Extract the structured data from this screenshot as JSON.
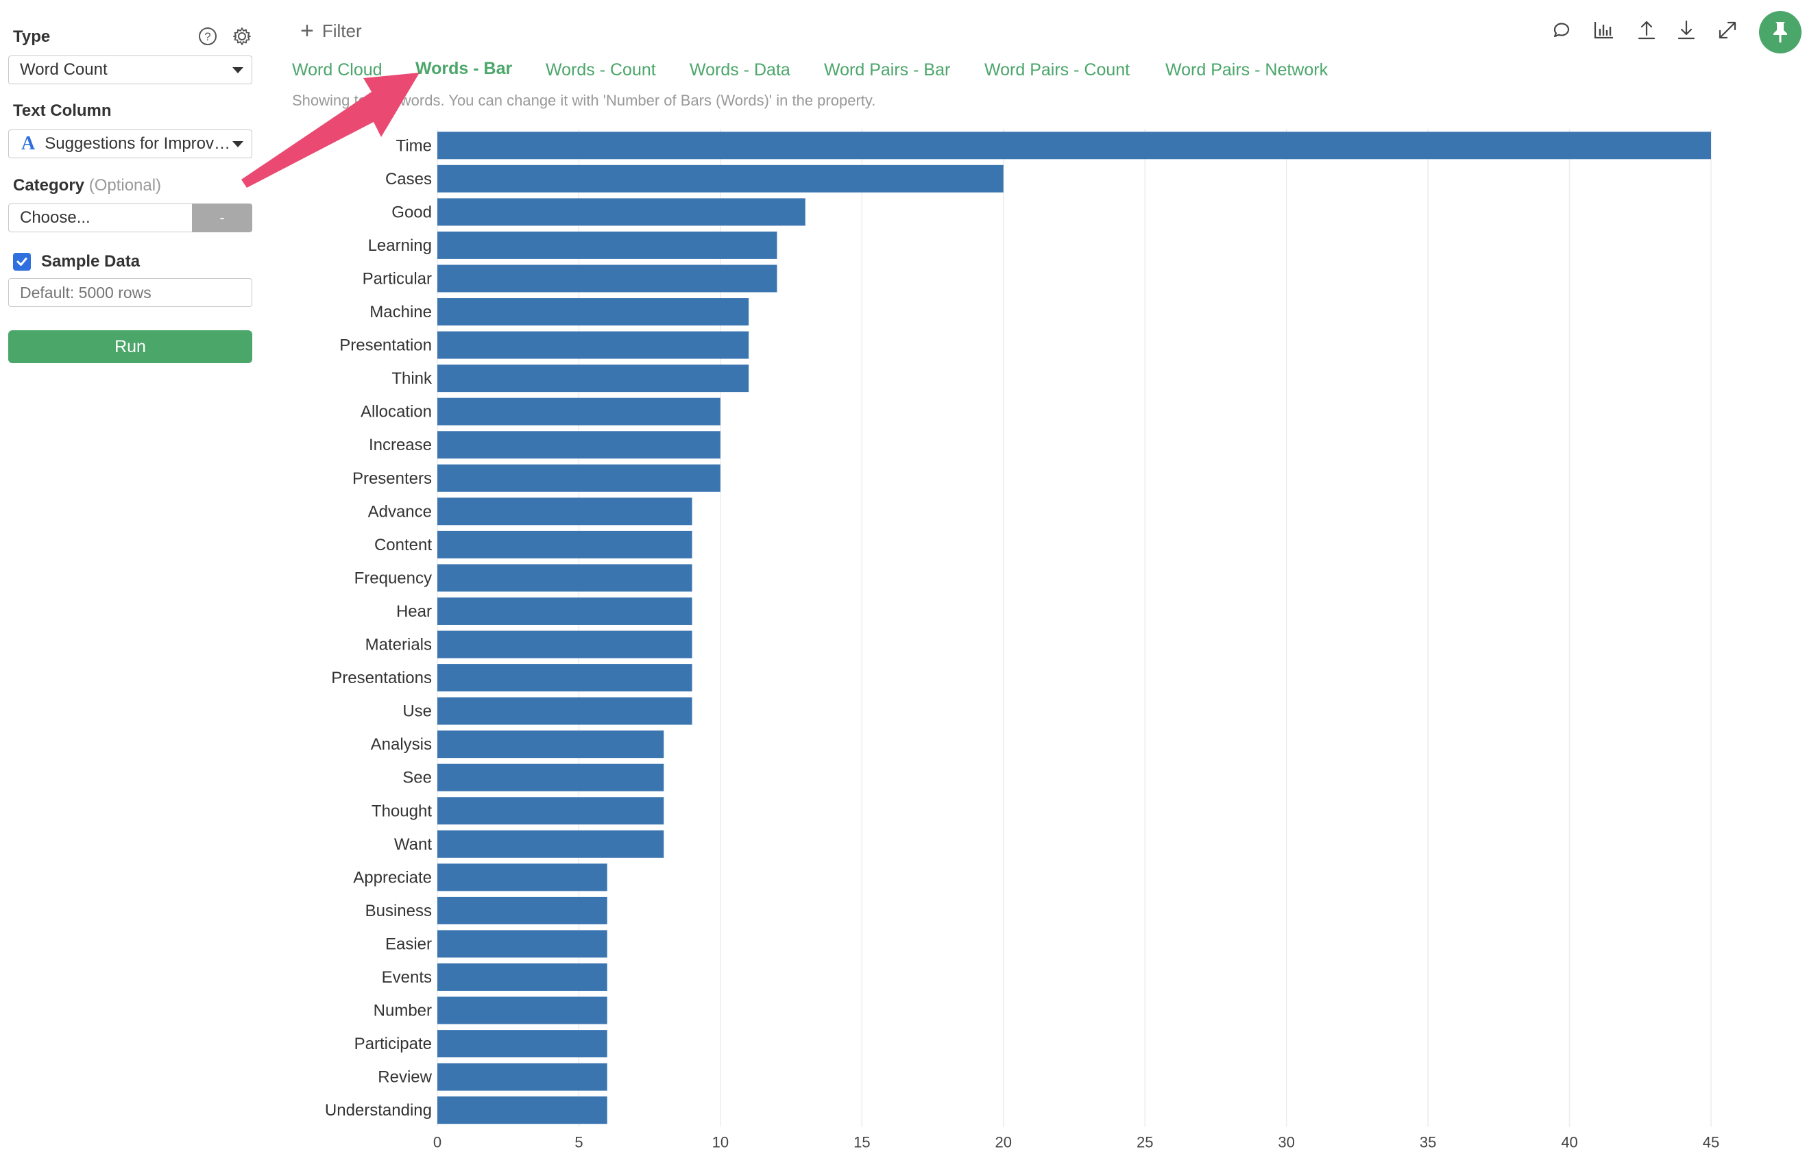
{
  "left_panel": {
    "type_label": "Type",
    "type_value": "Word Count",
    "text_column_label": "Text Column",
    "text_column_value": "Suggestions for Improv…",
    "text_column_type_glyph": "A",
    "category_label": "Category",
    "category_optional": "(Optional)",
    "category_placeholder": "Choose...",
    "category_clear_label": "-",
    "sample_data_label": "Sample Data",
    "sample_data_checked": true,
    "sample_rows_placeholder": "Default: 5000 rows",
    "run_label": "Run",
    "icons": [
      "help-icon",
      "gear-icon"
    ]
  },
  "header": {
    "filter_label": "Filter",
    "toolbar_icons": [
      "comment-icon",
      "chart-icon",
      "upload-icon",
      "download-icon",
      "expand-icon",
      "pin-icon"
    ]
  },
  "tabs": [
    {
      "label": "Word Cloud",
      "active": false
    },
    {
      "label": "Words - Bar",
      "active": true
    },
    {
      "label": "Words - Count",
      "active": false
    },
    {
      "label": "Words - Data",
      "active": false
    },
    {
      "label": "Word Pairs - Bar",
      "active": false
    },
    {
      "label": "Word Pairs - Count",
      "active": false
    },
    {
      "label": "Word Pairs - Network",
      "active": false
    }
  ],
  "info_text": "Showing top 30 words. You can change it with 'Number of Bars (Words)' in the property.",
  "colors": {
    "accent_green": "#4ba66a",
    "bar_blue": "#3b75b0",
    "annotation_pink": "#ea4a72",
    "checkbox_blue": "#2f6fde"
  },
  "chart_data": {
    "type": "bar",
    "orientation": "horizontal",
    "categories": [
      "Time",
      "Cases",
      "Good",
      "Learning",
      "Particular",
      "Machine",
      "Presentation",
      "Think",
      "Allocation",
      "Increase",
      "Presenters",
      "Advance",
      "Content",
      "Frequency",
      "Hear",
      "Materials",
      "Presentations",
      "Use",
      "Analysis",
      "See",
      "Thought",
      "Want",
      "Appreciate",
      "Business",
      "Easier",
      "Events",
      "Number",
      "Participate",
      "Review",
      "Understanding"
    ],
    "values": [
      45,
      20,
      13,
      12,
      12,
      11,
      11,
      11,
      10,
      10,
      10,
      9,
      9,
      9,
      9,
      9,
      9,
      9,
      8,
      8,
      8,
      8,
      6,
      6,
      6,
      6,
      6,
      6,
      6,
      6
    ],
    "xticks": [
      0,
      5,
      10,
      15,
      20,
      25,
      30,
      35,
      40,
      45
    ],
    "xlim": [
      0,
      45
    ],
    "grid": "vertical",
    "legend": "none"
  }
}
